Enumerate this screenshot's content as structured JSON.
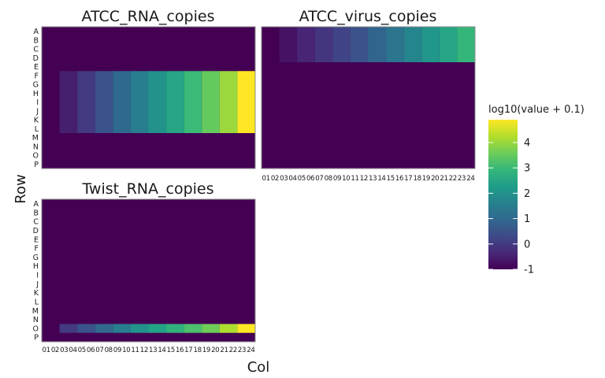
{
  "chart_data": {
    "type": "heatmap",
    "xlabel": "Col",
    "ylabel": "Row",
    "rows": [
      "A",
      "B",
      "C",
      "D",
      "E",
      "F",
      "G",
      "H",
      "I",
      "J",
      "K",
      "L",
      "M",
      "N",
      "O",
      "P"
    ],
    "cols": [
      "01",
      "02",
      "03",
      "04",
      "05",
      "06",
      "07",
      "08",
      "09",
      "10",
      "11",
      "12",
      "13",
      "14",
      "15",
      "16",
      "17",
      "18",
      "19",
      "20",
      "21",
      "22",
      "23",
      "24"
    ],
    "colorbar": {
      "title": "log10(value + 0.1)",
      "palette": "viridis",
      "range": [
        -1,
        4.9
      ],
      "ticks": [
        -1,
        0,
        1,
        2,
        3,
        4
      ],
      "stops": [
        "#440154",
        "#482878",
        "#3E4A89",
        "#31688E",
        "#26828E",
        "#1F9E89",
        "#35B779",
        "#6DCD59",
        "#B4DE2C",
        "#FDE725"
      ]
    },
    "background_value": -1,
    "panels": [
      {
        "title": "ATCC_RNA_copies",
        "show_col_ticks": false,
        "fills": [
          {
            "rows": [
              "F",
              "G",
              "H",
              "I",
              "J",
              "K",
              "L"
            ],
            "cols": [
              "03",
              "04"
            ],
            "value": -0.5
          },
          {
            "rows": [
              "F",
              "G",
              "H",
              "I",
              "J",
              "K",
              "L"
            ],
            "cols": [
              "05",
              "06"
            ],
            "value": 0.0
          },
          {
            "rows": [
              "F",
              "G",
              "H",
              "I",
              "J",
              "K",
              "L"
            ],
            "cols": [
              "07",
              "08"
            ],
            "value": 0.5
          },
          {
            "rows": [
              "F",
              "G",
              "H",
              "I",
              "J",
              "K",
              "L"
            ],
            "cols": [
              "09",
              "10"
            ],
            "value": 1.0
          },
          {
            "rows": [
              "F",
              "G",
              "H",
              "I",
              "J",
              "K",
              "L"
            ],
            "cols": [
              "11",
              "12"
            ],
            "value": 1.5
          },
          {
            "rows": [
              "F",
              "G",
              "H",
              "I",
              "J",
              "K",
              "L"
            ],
            "cols": [
              "13",
              "14"
            ],
            "value": 2.0
          },
          {
            "rows": [
              "F",
              "G",
              "H",
              "I",
              "J",
              "K",
              "L"
            ],
            "cols": [
              "15",
              "16"
            ],
            "value": 2.5
          },
          {
            "rows": [
              "F",
              "G",
              "H",
              "I",
              "J",
              "K",
              "L"
            ],
            "cols": [
              "17",
              "18"
            ],
            "value": 3.0
          },
          {
            "rows": [
              "F",
              "G",
              "H",
              "I",
              "J",
              "K",
              "L"
            ],
            "cols": [
              "19",
              "20"
            ],
            "value": 3.5
          },
          {
            "rows": [
              "F",
              "G",
              "H",
              "I",
              "J",
              "K",
              "L"
            ],
            "cols": [
              "21",
              "22"
            ],
            "value": 4.0
          },
          {
            "rows": [
              "F",
              "G",
              "H",
              "I",
              "J",
              "K",
              "L"
            ],
            "cols": [
              "23",
              "24"
            ],
            "value": 4.9
          }
        ]
      },
      {
        "title": "ATCC_virus_copies",
        "show_col_ticks": true,
        "fills": [
          {
            "rows": [
              "A",
              "B",
              "C",
              "D"
            ],
            "cols": [
              "03",
              "04"
            ],
            "value": -0.7
          },
          {
            "rows": [
              "A",
              "B",
              "C",
              "D"
            ],
            "cols": [
              "05",
              "06"
            ],
            "value": -0.4
          },
          {
            "rows": [
              "A",
              "B",
              "C",
              "D"
            ],
            "cols": [
              "07",
              "08"
            ],
            "value": -0.1
          },
          {
            "rows": [
              "A",
              "B",
              "C",
              "D"
            ],
            "cols": [
              "09",
              "10"
            ],
            "value": 0.2
          },
          {
            "rows": [
              "A",
              "B",
              "C",
              "D"
            ],
            "cols": [
              "11",
              "12"
            ],
            "value": 0.5
          },
          {
            "rows": [
              "A",
              "B",
              "C",
              "D"
            ],
            "cols": [
              "13",
              "14"
            ],
            "value": 0.9
          },
          {
            "rows": [
              "A",
              "B",
              "C",
              "D"
            ],
            "cols": [
              "15",
              "16"
            ],
            "value": 1.3
          },
          {
            "rows": [
              "A",
              "B",
              "C",
              "D"
            ],
            "cols": [
              "17",
              "18"
            ],
            "value": 1.7
          },
          {
            "rows": [
              "A",
              "B",
              "C",
              "D"
            ],
            "cols": [
              "19",
              "20"
            ],
            "value": 2.1
          },
          {
            "rows": [
              "A",
              "B",
              "C",
              "D"
            ],
            "cols": [
              "21",
              "22"
            ],
            "value": 2.5
          },
          {
            "rows": [
              "A",
              "B",
              "C",
              "D"
            ],
            "cols": [
              "23",
              "24"
            ],
            "value": 2.9
          }
        ]
      },
      {
        "title": "Twist_RNA_copies",
        "show_col_ticks": true,
        "fills": [
          {
            "rows": [
              "O"
            ],
            "cols": [
              "03",
              "04"
            ],
            "value": 0.0
          },
          {
            "rows": [
              "O"
            ],
            "cols": [
              "05",
              "06"
            ],
            "value": 0.5
          },
          {
            "rows": [
              "O"
            ],
            "cols": [
              "07",
              "08"
            ],
            "value": 1.0
          },
          {
            "rows": [
              "O"
            ],
            "cols": [
              "09",
              "10"
            ],
            "value": 1.5
          },
          {
            "rows": [
              "O"
            ],
            "cols": [
              "11",
              "12"
            ],
            "value": 2.0
          },
          {
            "rows": [
              "O"
            ],
            "cols": [
              "13",
              "14"
            ],
            "value": 2.4
          },
          {
            "rows": [
              "O"
            ],
            "cols": [
              "15",
              "16"
            ],
            "value": 2.8
          },
          {
            "rows": [
              "O"
            ],
            "cols": [
              "17",
              "18"
            ],
            "value": 3.2
          },
          {
            "rows": [
              "O"
            ],
            "cols": [
              "19",
              "20"
            ],
            "value": 3.6
          },
          {
            "rows": [
              "O"
            ],
            "cols": [
              "21",
              "22"
            ],
            "value": 4.2
          },
          {
            "rows": [
              "O"
            ],
            "cols": [
              "23",
              "24"
            ],
            "value": 4.9
          }
        ]
      }
    ]
  }
}
